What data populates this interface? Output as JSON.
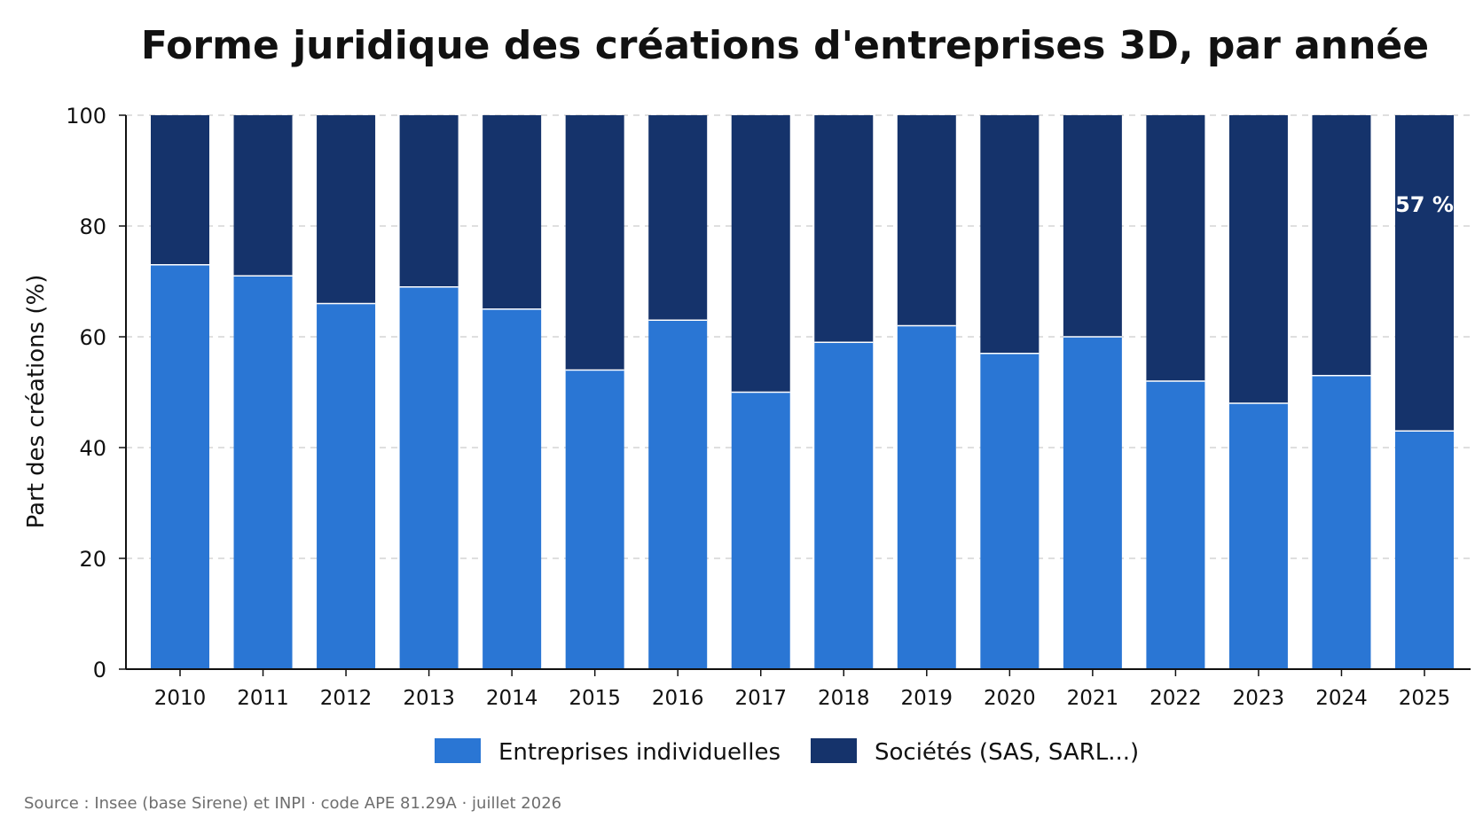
{
  "colors": {
    "individual": "#2a76d4",
    "societies": "#15336b",
    "grid": "#cccccc",
    "axis": "#111111"
  },
  "chart_data": {
    "type": "bar",
    "stacked": true,
    "title": "Forme juridique des créations d'entreprises 3D, par année",
    "xlabel": "",
    "ylabel": "Part des créations (%)",
    "ylim": [
      0,
      100
    ],
    "yticks": [
      0,
      20,
      40,
      60,
      80,
      100
    ],
    "grid": true,
    "legend_position": "bottom",
    "categories": [
      "2010",
      "2011",
      "2012",
      "2013",
      "2014",
      "2015",
      "2016",
      "2017",
      "2018",
      "2019",
      "2020",
      "2021",
      "2022",
      "2023",
      "2024",
      "2025"
    ],
    "series": [
      {
        "name": "Entreprises individuelles",
        "values": [
          73,
          71,
          66,
          69,
          65,
          54,
          63,
          50,
          59,
          62,
          57,
          60,
          52,
          48,
          53,
          43
        ]
      },
      {
        "name": "Sociétés (SAS, SARL...)",
        "values": [
          27,
          29,
          34,
          31,
          35,
          46,
          37,
          50,
          41,
          38,
          43,
          40,
          48,
          52,
          47,
          57
        ]
      }
    ],
    "annotations": [
      {
        "category": "2025",
        "series": "Sociétés (SAS, SARL...)",
        "text": "57 %"
      }
    ]
  },
  "footer": {
    "source": "Source : Insee (base Sirene) et INPI · code APE 81.29A · juillet 2026"
  }
}
